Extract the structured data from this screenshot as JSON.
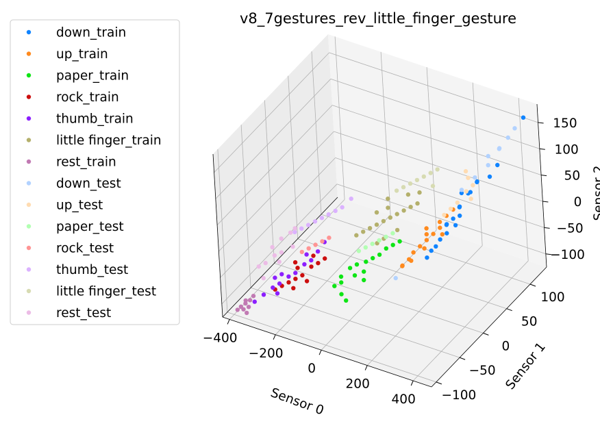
{
  "chart_data": {
    "type": "scatter",
    "projection": "3d",
    "title": "v8_7gestures_rev_little_finger_gesture",
    "xlabel": "Sensor 0",
    "ylabel": "Sensor 1",
    "zlabel": "Sensor 2",
    "xlim": [
      -430,
      480
    ],
    "ylim": [
      -110,
      135
    ],
    "zlim": [
      -125,
      185
    ],
    "xticks": [
      "−400",
      "−200",
      "0",
      "200",
      "400"
    ],
    "xtick_values": [
      -400,
      -200,
      0,
      200,
      400
    ],
    "yticks": [
      "−100",
      "−50",
      "0",
      "50",
      "100"
    ],
    "ytick_values": [
      -100,
      -50,
      0,
      50,
      100
    ],
    "zticks": [
      "−100",
      "−50",
      "0",
      "50",
      "100",
      "150"
    ],
    "ztick_values": [
      -100,
      -50,
      0,
      50,
      100,
      150
    ],
    "grid": true,
    "legend_position": "left",
    "series": [
      {
        "name": "down_train",
        "color": "#1084ff",
        "alpha": 1.0,
        "points": [
          [
            330,
            35,
            60
          ],
          [
            350,
            45,
            80
          ],
          [
            370,
            55,
            95
          ],
          [
            310,
            30,
            40
          ],
          [
            290,
            25,
            30
          ],
          [
            300,
            20,
            20
          ],
          [
            320,
            40,
            55
          ],
          [
            280,
            15,
            10
          ],
          [
            270,
            10,
            0
          ],
          [
            340,
            30,
            50
          ],
          [
            260,
            5,
            -5
          ],
          [
            310,
            50,
            70
          ],
          [
            360,
            60,
            90
          ],
          [
            330,
            25,
            35
          ],
          [
            250,
            0,
            -15
          ],
          [
            345,
            52,
            75
          ],
          [
            280,
            30,
            25
          ],
          [
            460,
            115,
            175
          ],
          [
            410,
            80,
            110
          ],
          [
            395,
            70,
            95
          ]
        ]
      },
      {
        "name": "up_train",
        "color": "#ff8a1e",
        "alpha": 1.0,
        "points": [
          [
            200,
            10,
            -10
          ],
          [
            220,
            15,
            0
          ],
          [
            240,
            20,
            10
          ],
          [
            180,
            5,
            -20
          ],
          [
            260,
            25,
            20
          ],
          [
            230,
            5,
            -5
          ],
          [
            210,
            20,
            5
          ],
          [
            190,
            -5,
            -25
          ],
          [
            250,
            30,
            25
          ],
          [
            270,
            35,
            35
          ],
          [
            160,
            -10,
            -35
          ],
          [
            280,
            20,
            15
          ],
          [
            200,
            25,
            10
          ],
          [
            170,
            0,
            -30
          ],
          [
            290,
            40,
            45
          ],
          [
            150,
            -5,
            -40
          ]
        ]
      },
      {
        "name": "paper_train",
        "color": "#0ee515",
        "alpha": 1.0,
        "points": [
          [
            -50,
            -20,
            -60
          ],
          [
            -30,
            -15,
            -55
          ],
          [
            0,
            -10,
            -50
          ],
          [
            -70,
            -30,
            -70
          ],
          [
            20,
            -5,
            -45
          ],
          [
            40,
            0,
            -40
          ],
          [
            -60,
            -35,
            -75
          ],
          [
            -20,
            -25,
            -65
          ],
          [
            10,
            -20,
            -58
          ],
          [
            60,
            5,
            -30
          ],
          [
            -80,
            -40,
            -80
          ],
          [
            80,
            10,
            -25
          ],
          [
            -40,
            -45,
            -85
          ],
          [
            30,
            -30,
            -62
          ],
          [
            100,
            15,
            -20
          ],
          [
            -10,
            -50,
            -88
          ]
        ]
      },
      {
        "name": "rock_train",
        "color": "#cc0f0f",
        "alpha": 1.0,
        "points": [
          [
            -260,
            -50,
            -90
          ],
          [
            -240,
            -45,
            -85
          ],
          [
            -220,
            -40,
            -80
          ],
          [
            -280,
            -55,
            -95
          ],
          [
            -200,
            -30,
            -70
          ],
          [
            -180,
            -25,
            -65
          ],
          [
            -300,
            -60,
            -100
          ],
          [
            -250,
            -35,
            -75
          ],
          [
            -230,
            -55,
            -92
          ],
          [
            -210,
            -20,
            -60
          ],
          [
            -190,
            -45,
            -82
          ],
          [
            -270,
            -30,
            -72
          ],
          [
            -160,
            -20,
            -58
          ]
        ]
      },
      {
        "name": "thumb_train",
        "color": "#8c1fff",
        "alpha": 1.0,
        "points": [
          [
            -330,
            -70,
            -105
          ],
          [
            -310,
            -60,
            -98
          ],
          [
            -290,
            -55,
            -92
          ],
          [
            -350,
            -80,
            -112
          ],
          [
            -270,
            -45,
            -85
          ],
          [
            -250,
            -40,
            -80
          ],
          [
            -230,
            -30,
            -70
          ],
          [
            -210,
            -25,
            -64
          ],
          [
            -320,
            -50,
            -90
          ],
          [
            -280,
            -65,
            -100
          ],
          [
            -200,
            -15,
            -55
          ],
          [
            -190,
            -5,
            -45
          ],
          [
            -300,
            -45,
            -85
          ],
          [
            -240,
            -20,
            -62
          ]
        ]
      },
      {
        "name": "little finger_train",
        "color": "#b4b06c",
        "alpha": 1.0,
        "points": [
          [
            -40,
            20,
            -20
          ],
          [
            -20,
            25,
            -15
          ],
          [
            0,
            30,
            -10
          ],
          [
            20,
            35,
            -5
          ],
          [
            40,
            40,
            0
          ],
          [
            60,
            45,
            5
          ],
          [
            -60,
            15,
            -25
          ],
          [
            -80,
            10,
            -30
          ],
          [
            80,
            50,
            10
          ],
          [
            100,
            55,
            15
          ],
          [
            -10,
            45,
            0
          ],
          [
            30,
            15,
            -25
          ],
          [
            50,
            60,
            20
          ],
          [
            -50,
            40,
            -10
          ],
          [
            70,
            25,
            -12
          ],
          [
            90,
            65,
            25
          ],
          [
            10,
            10,
            -32
          ],
          [
            -30,
            55,
            5
          ]
        ]
      },
      {
        "name": "rest_train",
        "color": "#c17ab3",
        "alpha": 1.0,
        "points": [
          [
            -390,
            -90,
            -118
          ],
          [
            -380,
            -85,
            -115
          ],
          [
            -370,
            -80,
            -112
          ],
          [
            -360,
            -88,
            -116
          ],
          [
            -395,
            -95,
            -120
          ],
          [
            -375,
            -92,
            -119
          ],
          [
            -385,
            -82,
            -113
          ],
          [
            -365,
            -75,
            -108
          ],
          [
            -355,
            -95,
            -120
          ]
        ]
      },
      {
        "name": "down_test",
        "color": "#b2d2ff",
        "alpha": 1.0,
        "points": [
          [
            400,
            90,
            130
          ],
          [
            420,
            100,
            145
          ],
          [
            380,
            75,
            110
          ],
          [
            430,
            110,
            155
          ],
          [
            360,
            85,
            115
          ],
          [
            340,
            65,
            90
          ],
          [
            390,
            95,
            125
          ],
          [
            300,
            55,
            70
          ],
          [
            150,
            -20,
            -50
          ]
        ]
      },
      {
        "name": "up_test",
        "color": "#ffdcb2",
        "alpha": 1.0,
        "points": [
          [
            300,
            45,
            55
          ],
          [
            320,
            55,
            70
          ],
          [
            280,
            40,
            45
          ],
          [
            340,
            60,
            80
          ],
          [
            260,
            35,
            35
          ],
          [
            310,
            65,
            85
          ],
          [
            350,
            50,
            65
          ],
          [
            290,
            70,
            90
          ]
        ]
      },
      {
        "name": "paper_test",
        "color": "#b2ffb2",
        "alpha": 1.0,
        "points": [
          [
            0,
            5,
            -30
          ],
          [
            20,
            10,
            -25
          ],
          [
            -20,
            0,
            -35
          ],
          [
            40,
            15,
            -20
          ],
          [
            -40,
            -5,
            -40
          ],
          [
            60,
            20,
            -15
          ]
        ]
      },
      {
        "name": "rock_test",
        "color": "#ff9494",
        "alpha": 1.0,
        "points": [
          [
            -220,
            -10,
            -50
          ],
          [
            -200,
            -5,
            -45
          ],
          [
            -240,
            -15,
            -55
          ],
          [
            -180,
            0,
            -40
          ],
          [
            -260,
            -20,
            -60
          ]
        ]
      },
      {
        "name": "thumb_test",
        "color": "#dbb2ff",
        "alpha": 1.0,
        "points": [
          [
            -260,
            10,
            -30
          ],
          [
            -240,
            15,
            -25
          ],
          [
            -280,
            5,
            -35
          ],
          [
            -220,
            20,
            -20
          ],
          [
            -300,
            0,
            -40
          ],
          [
            -200,
            25,
            -15
          ],
          [
            -320,
            -5,
            -45
          ],
          [
            -180,
            30,
            -10
          ],
          [
            -160,
            40,
            0
          ]
        ]
      },
      {
        "name": "little finger_test",
        "color": "#d7dbb2",
        "alpha": 1.0,
        "points": [
          [
            40,
            70,
            30
          ],
          [
            60,
            75,
            35
          ],
          [
            80,
            80,
            40
          ],
          [
            20,
            65,
            25
          ],
          [
            100,
            85,
            45
          ],
          [
            0,
            60,
            20
          ],
          [
            120,
            90,
            50
          ],
          [
            140,
            70,
            40
          ]
        ]
      },
      {
        "name": "rest_test",
        "color": "#ecbce6",
        "alpha": 1.0,
        "points": [
          [
            -380,
            -40,
            -80
          ],
          [
            -360,
            -30,
            -72
          ],
          [
            -340,
            -25,
            -68
          ],
          [
            -400,
            -45,
            -85
          ],
          [
            -370,
            -10,
            -60
          ],
          [
            -350,
            0,
            -55
          ],
          [
            -390,
            -20,
            -70
          ],
          [
            -330,
            -35,
            -75
          ],
          [
            -310,
            -15,
            -62
          ],
          [
            -360,
            -55,
            -92
          ],
          [
            -340,
            5,
            -50
          ]
        ]
      }
    ]
  }
}
